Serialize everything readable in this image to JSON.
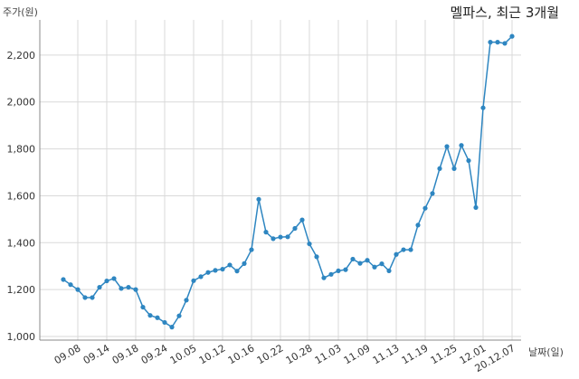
{
  "chart_data": {
    "type": "line",
    "title": "멜파스, 최근 3개월",
    "ylabel": "주가(원)",
    "xlabel": "날짜(일)",
    "ylim": [
      1000,
      2350
    ],
    "yticks": [
      1000,
      1200,
      1400,
      1600,
      1800,
      2000,
      2200
    ],
    "ytick_labels": [
      "1,000",
      "1,200",
      "1,400",
      "1,600",
      "1,800",
      "2,000",
      "2,200"
    ],
    "xtick_labels": [
      {
        "index": 2,
        "label": "09.08"
      },
      {
        "index": 6,
        "label": "09.14"
      },
      {
        "index": 10,
        "label": "09.18"
      },
      {
        "index": 14,
        "label": "09.24"
      },
      {
        "index": 18,
        "label": "10.05"
      },
      {
        "index": 22,
        "label": "10.12"
      },
      {
        "index": 26,
        "label": "10.16"
      },
      {
        "index": 30,
        "label": "10.22"
      },
      {
        "index": 34,
        "label": "10.28"
      },
      {
        "index": 38,
        "label": "11.03"
      },
      {
        "index": 42,
        "label": "11.09"
      },
      {
        "index": 46,
        "label": "11.13"
      },
      {
        "index": 50,
        "label": "11.19"
      },
      {
        "index": 54,
        "label": "11.25"
      },
      {
        "index": 58,
        "label": "12.01"
      },
      {
        "index": 62,
        "label": "20.12.07"
      }
    ],
    "grid": true,
    "line_color": "#2e86c1",
    "series": [
      {
        "values": [
          1243,
          1221,
          1200,
          1166,
          1166,
          1210,
          1237,
          1247,
          1205,
          1210,
          1200,
          1125,
          1090,
          1080,
          1060,
          1040,
          1088,
          1155,
          1238,
          1255,
          1273,
          1282,
          1287,
          1305,
          1279,
          1311,
          1370,
          1585,
          1445,
          1417,
          1424,
          1425,
          1461,
          1497,
          1395,
          1340,
          1250,
          1265,
          1280,
          1285,
          1330,
          1312,
          1325,
          1296,
          1310,
          1280,
          1350,
          1370,
          1370,
          1475,
          1547,
          1610,
          1716,
          1810,
          1716,
          1815,
          1750,
          1550,
          1975,
          2255,
          2255,
          2250,
          2280
        ]
      }
    ]
  }
}
